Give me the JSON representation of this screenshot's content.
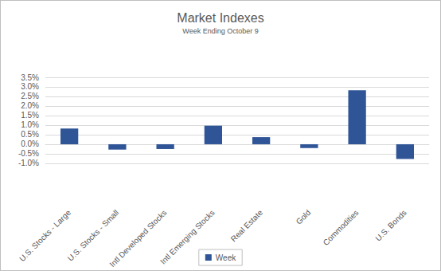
{
  "chart_data": {
    "type": "bar",
    "title": "Market Indexes",
    "subtitle": "Week Ending October 9",
    "categories": [
      "U.S. Stocks - Large",
      "U.S. Stocks - Small",
      "Intl Developed Stocks",
      "Intl Emerging Stocks",
      "Real Estate",
      "Gold",
      "Commodities",
      "U.S. Bonds"
    ],
    "series": [
      {
        "name": "Week",
        "color": "#2f5597",
        "values": [
          0.82,
          -0.28,
          -0.25,
          0.97,
          0.37,
          -0.2,
          2.82,
          -0.77
        ]
      }
    ],
    "ylim": [
      -1.0,
      3.5
    ],
    "yticks": [
      {
        "value": -1.0,
        "label": "-1.0%"
      },
      {
        "value": -0.5,
        "label": "-0.5%"
      },
      {
        "value": 0,
        "label": "0.0%"
      },
      {
        "value": 0.5,
        "label": "0.5%"
      },
      {
        "value": 1.0,
        "label": "1.0%"
      },
      {
        "value": 1.5,
        "label": "1.5%"
      },
      {
        "value": 2.0,
        "label": "2.0%"
      },
      {
        "value": 2.5,
        "label": "2.5%"
      },
      {
        "value": 3.0,
        "label": "3.0%"
      },
      {
        "value": 3.5,
        "label": "3.5%"
      }
    ],
    "grid": true,
    "legend": "bottom"
  }
}
